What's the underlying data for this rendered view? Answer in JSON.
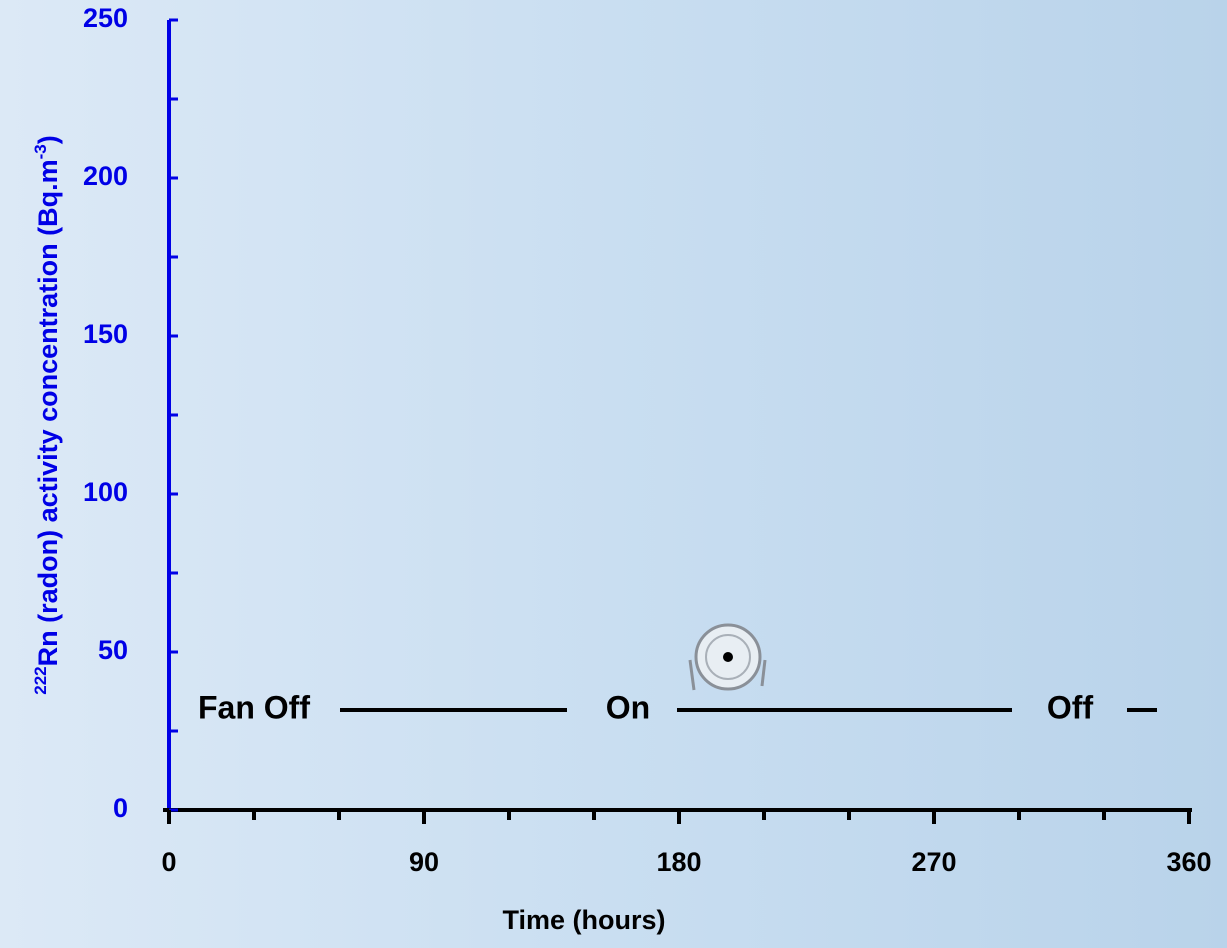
{
  "chart_data": {
    "type": "line",
    "y_label": {
      "prefix": "222",
      "main": "Rn (radon) activity concentration (Bq.m",
      "exponent": "-3",
      "suffix": ")"
    },
    "x_label": "Time (hours)",
    "xlim": [
      0,
      360
    ],
    "xticks": [
      0,
      90,
      180,
      270,
      360
    ],
    "x_minor_ticks": [
      30,
      60,
      120,
      150,
      210,
      240,
      300,
      330
    ],
    "ylim": [
      0,
      250
    ],
    "yticks": [
      0,
      50,
      100,
      150,
      200,
      250
    ],
    "y_minor_ticks": [
      25,
      75,
      125,
      175,
      225
    ],
    "annotations": [
      "Fan Off",
      "On",
      "Off"
    ],
    "y_axis_color": "#0000e6",
    "x_axis_color": "#000000"
  }
}
